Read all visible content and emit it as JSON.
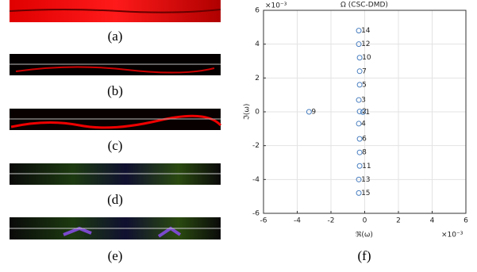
{
  "panels": {
    "labels": [
      "(a)",
      "(b)",
      "(c)",
      "(d)",
      "(e)",
      "(f)"
    ]
  },
  "chart_data": {
    "type": "scatter",
    "title": "Ω (CSC-DMD)",
    "x_label": "ℜ(ω)",
    "y_label": "ℑ(ω)",
    "exponent_label": "×10⁻³",
    "x": [
      -0.1,
      -0.3,
      -0.35,
      -0.35,
      -0.3,
      -0.3,
      -0.3,
      -0.3,
      -3.3,
      -0.3,
      -0.3,
      -0.35,
      -0.35,
      -0.35,
      -0.35
    ],
    "y": [
      -0.02,
      0.02,
      0.7,
      -0.7,
      1.6,
      -1.6,
      2.4,
      -2.4,
      0,
      3.2,
      -3.2,
      4.0,
      -4.0,
      4.8,
      -4.8
    ],
    "point_labels": [
      "1",
      "2",
      "3",
      "4",
      "5",
      "6",
      "7",
      "8",
      "9",
      "10",
      "11",
      "12",
      "13",
      "14",
      "15"
    ],
    "color": "#4a7fc0",
    "xlim": [
      -6,
      6
    ],
    "ylim": [
      -6,
      6
    ],
    "xticks": [
      -6,
      -4,
      -2,
      0,
      2,
      4,
      6
    ],
    "yticks": [
      -6,
      -4,
      -2,
      0,
      2,
      4,
      6
    ],
    "grid": true
  }
}
